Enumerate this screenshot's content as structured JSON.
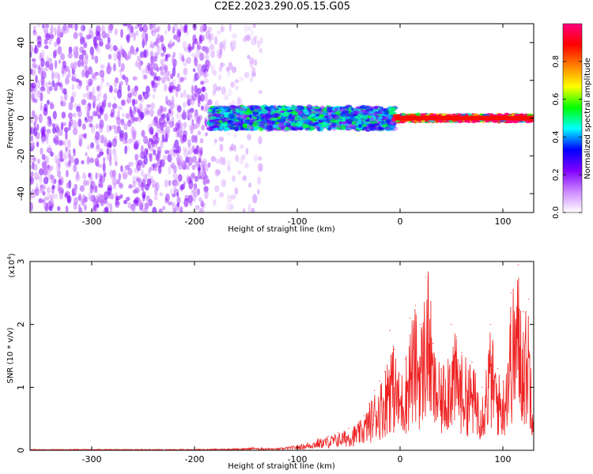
{
  "title": "C2E2.2023.290.05.15.G05",
  "chart_data": [
    {
      "type": "heatmap",
      "xlabel": "Height of straight line (km)",
      "ylabel": "Frequency (Hz)",
      "xlim": [
        -360,
        130
      ],
      "ylim": [
        -50,
        50
      ],
      "xticks": [
        -300,
        -200,
        -100,
        0,
        100
      ],
      "yticks": [
        -40,
        -20,
        0,
        20,
        40
      ],
      "colorbar": {
        "label": "Normalized spectral amplitude",
        "range": [
          0.0,
          1.0
        ],
        "ticks": [
          0.0,
          0.2,
          0.4,
          0.6,
          0.8
        ],
        "colormap": [
          "#ffffff",
          "#cc88ff",
          "#8000ff",
          "#0000ff",
          "#00ffff",
          "#00ff00",
          "#ffff00",
          "#ff8000",
          "#ff0000",
          "#ff0080"
        ]
      },
      "regions": [
        {
          "x": [
            -360,
            -185
          ],
          "freq_halfwidth": 50,
          "amplitude": 0.15,
          "note_density": 0.75
        },
        {
          "x": [
            -185,
            -135
          ],
          "freq_halfwidth": 50,
          "amplitude": 0.08,
          "note_density": 0.3
        },
        {
          "x": [
            -185,
            -5
          ],
          "freq_halfwidth": 6,
          "amplitude": 0.35
        },
        {
          "x": [
            -5,
            130
          ],
          "freq_halfwidth": 1.5,
          "amplitude": 0.9
        }
      ]
    },
    {
      "type": "line",
      "xlabel": "Height of straight line (km)",
      "ylabel": "SNR (10 * v/v)",
      "y_multiplier": "(x10",
      "y_multiplier_exp": "4",
      "y_multiplier_close": ")",
      "xlim": [
        -360,
        130
      ],
      "ylim": [
        0,
        3
      ],
      "xticks": [
        -300,
        -200,
        -100,
        0,
        100
      ],
      "yticks": [
        0,
        1,
        2,
        3
      ],
      "series": [
        {
          "color": "#ee2222",
          "points": [
            [
              -360,
              0.01
            ],
            [
              -300,
              0.01
            ],
            [
              -250,
              0.01
            ],
            [
              -200,
              0.01
            ],
            [
              -150,
              0.02
            ],
            [
              -135,
              0.04
            ],
            [
              -120,
              0.03
            ],
            [
              -100,
              0.08
            ],
            [
              -90,
              0.12
            ],
            [
              -80,
              0.18
            ],
            [
              -70,
              0.22
            ],
            [
              -60,
              0.28
            ],
            [
              -50,
              0.35
            ],
            [
              -40,
              0.45
            ],
            [
              -35,
              0.55
            ],
            [
              -30,
              0.75
            ],
            [
              -25,
              0.95
            ],
            [
              -20,
              1.1
            ],
            [
              -15,
              1.25
            ],
            [
              -10,
              1.9
            ],
            [
              -5,
              1.6
            ],
            [
              0,
              1.2
            ],
            [
              5,
              1.45
            ],
            [
              10,
              2.1
            ],
            [
              15,
              2.3
            ],
            [
              20,
              2.0
            ],
            [
              25,
              2.75
            ],
            [
              28,
              3.0
            ],
            [
              32,
              1.7
            ],
            [
              40,
              1.3
            ],
            [
              50,
              2.0
            ],
            [
              55,
              1.8
            ],
            [
              60,
              1.55
            ],
            [
              70,
              1.4
            ],
            [
              80,
              1.0
            ],
            [
              88,
              2.0
            ],
            [
              95,
              1.3
            ],
            [
              100,
              1.1
            ],
            [
              108,
              2.5
            ],
            [
              115,
              2.95
            ],
            [
              120,
              2.2
            ],
            [
              125,
              2.4
            ],
            [
              130,
              1.0
            ]
          ]
        }
      ]
    }
  ]
}
